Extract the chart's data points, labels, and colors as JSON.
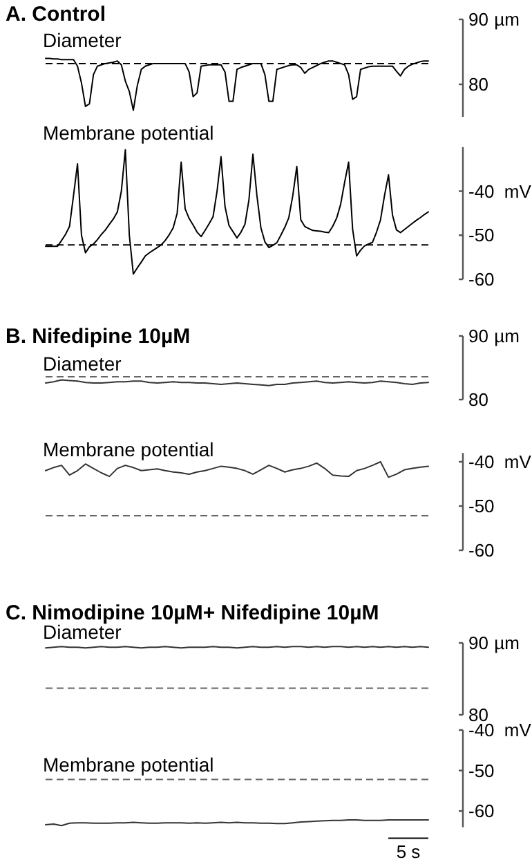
{
  "chart_data": [
    {
      "type": "line",
      "title": "A. Control",
      "subtitle": "Diameter",
      "categories": [
        null,
        null,
        null,
        null,
        null,
        null,
        null,
        null,
        null,
        null,
        null,
        null,
        null,
        null,
        null,
        null,
        null,
        null,
        null,
        null,
        null,
        null,
        null,
        null,
        null,
        null,
        null,
        null,
        null,
        null,
        null,
        null,
        null,
        null,
        null,
        null,
        null,
        null,
        null,
        null,
        null,
        null,
        null,
        null,
        null,
        null,
        null,
        null,
        null,
        null,
        null,
        null,
        null,
        null,
        null,
        null,
        null,
        null,
        null,
        null,
        null,
        null,
        null,
        null,
        null,
        null,
        null,
        null,
        null,
        null,
        null,
        null,
        null,
        null,
        null,
        null,
        null,
        null,
        null,
        null,
        null,
        null,
        null,
        null,
        null,
        null,
        null,
        null,
        null,
        null,
        null,
        null,
        null,
        null,
        null,
        null,
        null
      ],
      "ylabel": "µm",
      "ylim": [
        75,
        90
      ],
      "yticks": [
        90,
        80
      ],
      "tick_labels": "y",
      "ref_lines": [
        {
          "axis": "y",
          "value": 83.2,
          "color": "#000000",
          "line_style": "dashed"
        }
      ],
      "series": [
        {
          "color": "#000000",
          "values": [
            84.0,
            84.0,
            83.9,
            83.9,
            83.8,
            83.8,
            83.8,
            83.8,
            82.8,
            80.2,
            76.6,
            77.0,
            81.5,
            82.8,
            83.0,
            83.2,
            83.3,
            83.4,
            83.6,
            83.0,
            80.5,
            78.9,
            76.0,
            79.8,
            82.3,
            82.8,
            83.0,
            83.2,
            83.2,
            83.2,
            83.2,
            83.2,
            83.2,
            83.2,
            83.2,
            83.2,
            81.9,
            78.1,
            78.7,
            82.8,
            82.9,
            83.0,
            83.0,
            83.0,
            83.0,
            81.9,
            77.4,
            77.4,
            82.3,
            82.6,
            82.8,
            83.0,
            83.2,
            83.2,
            83.2,
            81.5,
            77.4,
            77.4,
            82.3,
            82.5,
            82.7,
            82.9,
            83.0,
            83.0,
            82.6,
            81.7,
            82.3,
            82.6,
            82.9,
            83.2,
            83.4,
            83.6,
            83.6,
            83.4,
            83.2,
            83.0,
            81.5,
            77.7,
            78.1,
            82.3,
            82.5,
            82.7,
            82.8,
            82.8,
            82.8,
            82.8,
            82.8,
            82.8,
            82.0,
            81.3,
            82.3,
            82.8,
            83.1,
            83.3,
            83.5,
            83.6,
            83.6
          ]
        }
      ]
    },
    {
      "type": "line",
      "subtitle": "Membrane potential",
      "categories": [
        null,
        null,
        null,
        null,
        null,
        null,
        null,
        null,
        null,
        null,
        null,
        null,
        null,
        null,
        null,
        null,
        null,
        null,
        null,
        null,
        null,
        null,
        null,
        null,
        null,
        null,
        null,
        null,
        null,
        null,
        null,
        null,
        null,
        null,
        null,
        null,
        null,
        null,
        null,
        null,
        null,
        null,
        null,
        null,
        null,
        null,
        null,
        null,
        null,
        null,
        null,
        null,
        null,
        null,
        null,
        null,
        null,
        null,
        null,
        null,
        null,
        null,
        null,
        null,
        null,
        null,
        null,
        null,
        null,
        null,
        null,
        null,
        null,
        null,
        null,
        null,
        null,
        null,
        null,
        null,
        null,
        null,
        null,
        null,
        null,
        null,
        null,
        null,
        null,
        null,
        null,
        null,
        null,
        null,
        null,
        null,
        null
      ],
      "ylabel": "mV",
      "ylim": [
        -60,
        -30
      ],
      "yticks": [
        -40,
        -50,
        -60
      ],
      "tick_labels": "y",
      "ref_lines": [
        {
          "axis": "y",
          "value": -52.2,
          "color": "#000000",
          "line_style": "dashed"
        }
      ],
      "series": [
        {
          "color": "#000000",
          "values": [
            -52.5,
            -52.5,
            -52.5,
            -52.5,
            -51.2,
            -49.8,
            -48.0,
            -41,
            -33.8,
            -50.0,
            -54.0,
            -52.6,
            -52.0,
            -51.0,
            -49.8,
            -48.8,
            -47.5,
            -46.3,
            -44.7,
            -40,
            -30.6,
            -50,
            -58.8,
            -57.4,
            -56.1,
            -54.7,
            -54.0,
            -53.4,
            -52.8,
            -52.2,
            -51.2,
            -49.9,
            -48.3,
            -45,
            -33.4,
            -44,
            -46.2,
            -47.7,
            -49.3,
            -50.3,
            -48.9,
            -47.4,
            -45.8,
            -40,
            -32.2,
            -43.5,
            -47.8,
            -49.2,
            -50.6,
            -49.3,
            -47.5,
            -42,
            -31.6,
            -41,
            -48.3,
            -51.5,
            -52.8,
            -52.3,
            -51.7,
            -50,
            -48.2,
            -46,
            -41,
            -34.4,
            -46.5,
            -48.0,
            -48.5,
            -48.9,
            -49.0,
            -49.1,
            -49.3,
            -49.4,
            -48.0,
            -46.1,
            -43,
            -38,
            -33.4,
            -48.6,
            -54.7,
            -53.4,
            -52.4,
            -52.0,
            -51.6,
            -49.3,
            -46.5,
            -41,
            -36.3,
            -45.4,
            -48.8,
            -49.4,
            -48.7,
            -48.0,
            -47.3,
            -46.6,
            -46.0,
            -45.3,
            -44.7
          ]
        }
      ]
    },
    {
      "type": "line",
      "title": "B. Nifedipine 10µM",
      "subtitle": "Diameter",
      "categories": [
        null,
        null,
        null,
        null,
        null,
        null,
        null,
        null,
        null,
        null,
        null,
        null,
        null,
        null,
        null,
        null,
        null,
        null,
        null,
        null,
        null,
        null,
        null,
        null,
        null,
        null,
        null,
        null,
        null,
        null,
        null,
        null,
        null,
        null,
        null,
        null,
        null,
        null,
        null,
        null,
        null,
        null,
        null,
        null,
        null,
        null,
        null,
        null,
        null
      ],
      "ylabel": "µm",
      "ylim": [
        80,
        90
      ],
      "yticks": [
        90,
        80
      ],
      "tick_labels": "y",
      "ref_lines": [
        {
          "axis": "y",
          "value": 83.6,
          "color": "#666666",
          "line_style": "dashed"
        }
      ],
      "series": [
        {
          "color": "#333333",
          "values": [
            82.6,
            82.8,
            83.1,
            83.0,
            82.9,
            82.7,
            82.6,
            82.6,
            82.7,
            82.8,
            82.8,
            82.9,
            82.9,
            82.7,
            82.6,
            82.7,
            82.8,
            82.7,
            82.7,
            82.6,
            82.6,
            82.5,
            82.4,
            82.5,
            82.6,
            82.5,
            82.4,
            82.3,
            82.2,
            82.4,
            82.4,
            82.6,
            82.7,
            82.8,
            82.9,
            82.7,
            82.6,
            82.7,
            82.8,
            82.7,
            82.6,
            82.7,
            82.9,
            82.8,
            82.7,
            82.5,
            82.4,
            82.6,
            82.7
          ]
        }
      ]
    },
    {
      "type": "line",
      "subtitle": "Membrane potential",
      "categories": [
        null,
        null,
        null,
        null,
        null,
        null,
        null,
        null,
        null,
        null,
        null,
        null,
        null,
        null,
        null,
        null,
        null,
        null,
        null,
        null,
        null,
        null,
        null,
        null,
        null,
        null,
        null,
        null,
        null,
        null,
        null,
        null,
        null,
        null,
        null,
        null,
        null,
        null,
        null,
        null,
        null,
        null,
        null,
        null,
        null,
        null,
        null,
        null,
        null
      ],
      "ylabel": "mV",
      "ylim": [
        -60,
        -38
      ],
      "yticks": [
        -40,
        -50,
        -60
      ],
      "tick_labels": "y",
      "ref_lines": [
        {
          "axis": "y",
          "value": -52.2,
          "color": "#666666",
          "line_style": "dashed"
        }
      ],
      "series": [
        {
          "color": "#333333",
          "values": [
            -42.0,
            -41.3,
            -40.8,
            -43.0,
            -42.0,
            -40.5,
            -41.5,
            -42.5,
            -43.3,
            -41.5,
            -40.8,
            -41.3,
            -42.0,
            -41.8,
            -41.6,
            -42.0,
            -42.3,
            -42.5,
            -42.8,
            -42.3,
            -42.0,
            -41.5,
            -41.0,
            -41.2,
            -41.5,
            -42.0,
            -42.8,
            -41.8,
            -40.8,
            -41.5,
            -42.3,
            -41.8,
            -41.5,
            -41.0,
            -40.3,
            -41.5,
            -43.0,
            -43.2,
            -43.3,
            -42.0,
            -41.5,
            -40.8,
            -40.0,
            -43.5,
            -42.8,
            -41.8,
            -41.5,
            -41.2,
            -41.0
          ]
        }
      ]
    },
    {
      "type": "line",
      "title": "C. Nimodipine 10µM+ Nifedipine 10µM",
      "subtitle": "Diameter",
      "categories": [
        null,
        null,
        null,
        null,
        null,
        null,
        null,
        null,
        null,
        null,
        null,
        null,
        null,
        null,
        null,
        null,
        null,
        null,
        null,
        null,
        null,
        null,
        null,
        null,
        null,
        null,
        null,
        null,
        null,
        null,
        null,
        null,
        null,
        null,
        null,
        null,
        null,
        null,
        null,
        null,
        null,
        null,
        null,
        null,
        null,
        null,
        null,
        null,
        null
      ],
      "ylabel": "µm",
      "ylim": [
        80,
        90
      ],
      "yticks": [
        90,
        80
      ],
      "tick_labels": "y",
      "ref_lines": [
        {
          "axis": "y",
          "value": 83.7,
          "color": "#666666",
          "line_style": "dashed"
        }
      ],
      "series": [
        {
          "color": "#333333",
          "values": [
            89.3,
            89.4,
            89.5,
            89.4,
            89.4,
            89.3,
            89.4,
            89.5,
            89.4,
            89.4,
            89.5,
            89.4,
            89.3,
            89.4,
            89.4,
            89.5,
            89.4,
            89.3,
            89.4,
            89.4,
            89.4,
            89.5,
            89.4,
            89.4,
            89.3,
            89.4,
            89.5,
            89.4,
            89.4,
            89.5,
            89.4,
            89.5,
            89.5,
            89.4,
            89.5,
            89.4,
            89.5,
            89.5,
            89.4,
            89.5,
            89.4,
            89.5,
            89.4,
            89.5,
            89.4,
            89.5,
            89.4,
            89.5,
            89.4
          ]
        }
      ]
    },
    {
      "type": "line",
      "subtitle": "Membrane potential",
      "categories": [
        null,
        null,
        null,
        null,
        null,
        null,
        null,
        null,
        null,
        null,
        null,
        null,
        null,
        null,
        null,
        null,
        null,
        null,
        null,
        null,
        null,
        null,
        null,
        null,
        null,
        null,
        null,
        null,
        null,
        null,
        null,
        null,
        null,
        null,
        null,
        null,
        null,
        null,
        null,
        null,
        null,
        null,
        null,
        null,
        null,
        null,
        null,
        null,
        null
      ],
      "ylabel": "mV",
      "ylim": [
        -64,
        -40
      ],
      "yticks": [
        -40,
        -50,
        -60
      ],
      "tick_labels": "y",
      "annotations": [
        "5 s"
      ],
      "ref_lines": [
        {
          "axis": "y",
          "value": -52.2,
          "color": "#666666",
          "line_style": "dashed"
        }
      ],
      "series": [
        {
          "color": "#333333",
          "values": [
            -63.4,
            -63.2,
            -63.6,
            -63.0,
            -62.9,
            -62.9,
            -63.0,
            -63.0,
            -63.0,
            -62.9,
            -62.9,
            -62.8,
            -62.9,
            -63.0,
            -63.0,
            -62.9,
            -62.9,
            -62.9,
            -63.0,
            -62.9,
            -63.0,
            -62.9,
            -62.8,
            -62.9,
            -62.8,
            -62.9,
            -62.9,
            -63.0,
            -63.0,
            -63.1,
            -63.1,
            -62.9,
            -62.7,
            -62.6,
            -62.5,
            -62.4,
            -62.3,
            -62.3,
            -62.2,
            -62.2,
            -62.3,
            -62.3,
            -62.3,
            -62.2,
            -62.2,
            -62.2,
            -62.2,
            -62.2,
            -62.2
          ]
        }
      ]
    }
  ]
}
